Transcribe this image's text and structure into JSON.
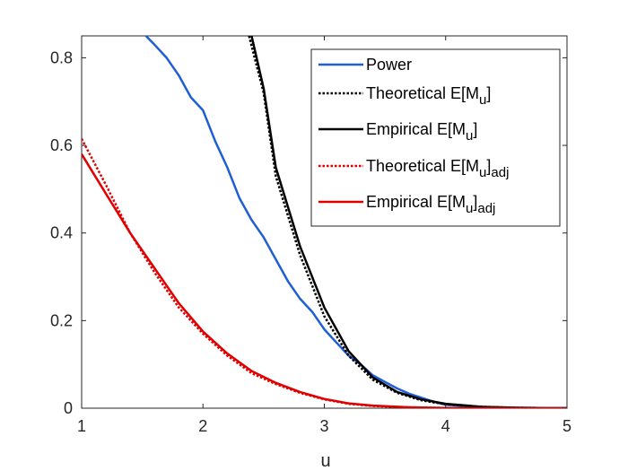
{
  "chart_data": {
    "type": "line",
    "xlabel": "u",
    "ylabel": "",
    "xlim": [
      1,
      5
    ],
    "ylim": [
      0,
      0.85
    ],
    "xticks": [
      1,
      2,
      3,
      4,
      5
    ],
    "yticks": [
      0,
      0.2,
      0.4,
      0.6,
      0.8
    ],
    "xtick_labels": [
      "1",
      "2",
      "3",
      "4",
      "5"
    ],
    "ytick_labels": [
      "0",
      "0.2",
      "0.4",
      "0.6",
      "0.8"
    ],
    "grid": false,
    "legend_position": "top-right",
    "series": [
      {
        "name": "Power",
        "legend_main": "Power",
        "legend_sub": "",
        "legend_tail": "",
        "color": "#1f5fd6",
        "dash": "solid",
        "points": [
          [
            1.53,
            0.85
          ],
          [
            1.6,
            0.83
          ],
          [
            1.7,
            0.8
          ],
          [
            1.8,
            0.76
          ],
          [
            1.9,
            0.71
          ],
          [
            2.0,
            0.68
          ],
          [
            2.1,
            0.61
          ],
          [
            2.2,
            0.55
          ],
          [
            2.3,
            0.48
          ],
          [
            2.4,
            0.43
          ],
          [
            2.5,
            0.39
          ],
          [
            2.6,
            0.34
          ],
          [
            2.7,
            0.29
          ],
          [
            2.8,
            0.25
          ],
          [
            2.9,
            0.22
          ],
          [
            3.0,
            0.18
          ],
          [
            3.1,
            0.15
          ],
          [
            3.2,
            0.12
          ],
          [
            3.3,
            0.1
          ],
          [
            3.4,
            0.075
          ],
          [
            3.5,
            0.06
          ],
          [
            3.6,
            0.045
          ],
          [
            3.7,
            0.033
          ],
          [
            3.8,
            0.024
          ],
          [
            3.9,
            0.015
          ],
          [
            4.0,
            0.008
          ],
          [
            4.2,
            0.004
          ],
          [
            4.5,
            0.001
          ],
          [
            5.0,
            0.0
          ]
        ]
      },
      {
        "name": "Theoretical E[Mu]",
        "legend_main": "Theoretical E[M",
        "legend_sub": "u",
        "legend_tail": "]",
        "color": "#000000",
        "dash": "dotted",
        "points": [
          [
            2.38,
            0.85
          ],
          [
            2.5,
            0.72
          ],
          [
            2.6,
            0.53
          ],
          [
            2.8,
            0.35
          ],
          [
            3.0,
            0.21
          ],
          [
            3.2,
            0.12
          ],
          [
            3.4,
            0.065
          ],
          [
            3.6,
            0.035
          ],
          [
            3.8,
            0.018
          ],
          [
            4.0,
            0.009
          ],
          [
            4.3,
            0.003
          ],
          [
            4.6,
            0.001
          ],
          [
            5.0,
            0.0
          ]
        ]
      },
      {
        "name": "Empirical E[Mu]",
        "legend_main": "Empirical E[M",
        "legend_sub": "u",
        "legend_tail": "]",
        "color": "#000000",
        "dash": "solid",
        "points": [
          [
            2.4,
            0.85
          ],
          [
            2.5,
            0.73
          ],
          [
            2.6,
            0.55
          ],
          [
            2.8,
            0.37
          ],
          [
            3.0,
            0.23
          ],
          [
            3.2,
            0.13
          ],
          [
            3.4,
            0.07
          ],
          [
            3.6,
            0.037
          ],
          [
            3.8,
            0.02
          ],
          [
            4.0,
            0.01
          ],
          [
            4.3,
            0.003
          ],
          [
            4.6,
            0.001
          ],
          [
            5.0,
            0.0
          ]
        ]
      },
      {
        "name": "Theoretical E[Mu]adj",
        "legend_main": "Theoretical E[M",
        "legend_sub": "u",
        "legend_tail": "]",
        "legend_tail_sub": "adj",
        "color": "#e00000",
        "dash": "dotted",
        "points": [
          [
            1.0,
            0.615
          ],
          [
            1.2,
            0.51
          ],
          [
            1.4,
            0.4
          ],
          [
            1.6,
            0.31
          ],
          [
            1.8,
            0.23
          ],
          [
            2.0,
            0.17
          ],
          [
            2.2,
            0.12
          ],
          [
            2.4,
            0.08
          ],
          [
            2.6,
            0.055
          ],
          [
            2.8,
            0.035
          ],
          [
            3.0,
            0.02
          ],
          [
            3.2,
            0.01
          ],
          [
            3.4,
            0.005
          ],
          [
            3.7,
            0.002
          ],
          [
            4.0,
            0.0005
          ],
          [
            5.0,
            0.0
          ]
        ]
      },
      {
        "name": "Empirical E[Mu]adj",
        "legend_main": "Empirical E[M",
        "legend_sub": "u",
        "legend_tail": "]",
        "legend_tail_sub": "adj",
        "color": "#e00000",
        "dash": "solid",
        "points": [
          [
            1.0,
            0.58
          ],
          [
            1.2,
            0.49
          ],
          [
            1.4,
            0.4
          ],
          [
            1.6,
            0.32
          ],
          [
            1.8,
            0.24
          ],
          [
            2.0,
            0.175
          ],
          [
            2.2,
            0.125
          ],
          [
            2.4,
            0.085
          ],
          [
            2.6,
            0.058
          ],
          [
            2.8,
            0.037
          ],
          [
            3.0,
            0.021
          ],
          [
            3.2,
            0.011
          ],
          [
            3.4,
            0.006
          ],
          [
            3.7,
            0.002
          ],
          [
            4.0,
            0.0006
          ],
          [
            5.0,
            0.0
          ]
        ]
      }
    ]
  }
}
